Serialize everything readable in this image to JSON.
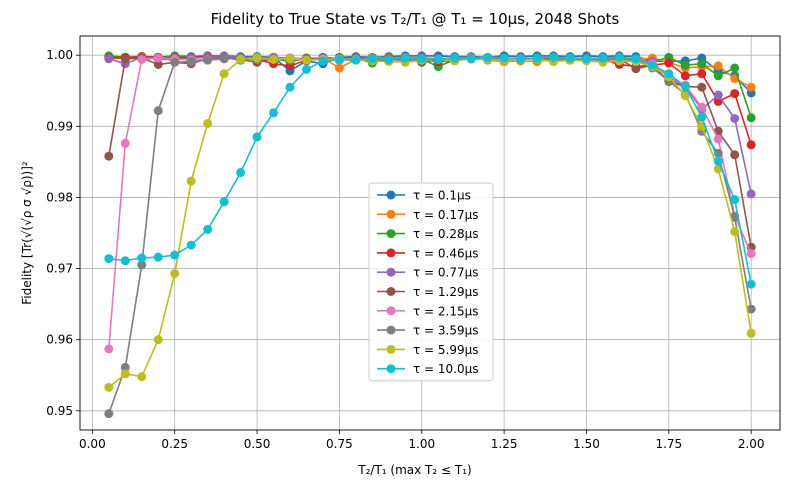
{
  "chart_data": {
    "type": "line",
    "title": "Fidelity to True State vs T₂/T₁ @ T₁ = 10μs, 2048 Shots",
    "xlabel": "T₂/T₁ (max T₂ ≤ T₁)",
    "ylabel": "Fidelity [Tr(√(√ρ σ √ρ))]²",
    "xlim": [
      -0.0375,
      2.0875
    ],
    "ylim": [
      0.9473,
      1.0027
    ],
    "xticks": [
      "0.00",
      "0.25",
      "0.50",
      "0.75",
      "1.00",
      "1.25",
      "1.50",
      "1.75",
      "2.00"
    ],
    "xtick_values": [
      0,
      0.25,
      0.5,
      0.75,
      1.0,
      1.25,
      1.5,
      1.75,
      2.0
    ],
    "yticks": [
      "0.95",
      "0.96",
      "0.97",
      "0.98",
      "0.99",
      "1.00"
    ],
    "ytick_values": [
      0.95,
      0.96,
      0.97,
      0.98,
      0.99,
      1.0
    ],
    "grid": true,
    "legend_position": "lower-center",
    "x": [
      0.05,
      0.1,
      0.15,
      0.2,
      0.25,
      0.3,
      0.35,
      0.4,
      0.45,
      0.5,
      0.55,
      0.6,
      0.65,
      0.7,
      0.75,
      0.8,
      0.85,
      0.9,
      0.95,
      1.0,
      1.05,
      1.1,
      1.15,
      1.2,
      1.25,
      1.3,
      1.35,
      1.4,
      1.45,
      1.5,
      1.55,
      1.6,
      1.65,
      1.7,
      1.75,
      1.8,
      1.85,
      1.9,
      1.95,
      2.0
    ],
    "series": [
      {
        "name": "τ = 0.1μs",
        "color": "#1f77b4",
        "values": [
          0.9998,
          0.9996,
          0.9998,
          0.9997,
          0.9999,
          0.9998,
          0.9999,
          0.9999,
          0.9998,
          0.9998,
          0.9997,
          0.9978,
          0.9992,
          0.9988,
          0.9997,
          0.9998,
          0.9997,
          0.9998,
          0.9999,
          0.9999,
          0.9999,
          0.9998,
          0.9998,
          0.9997,
          0.9999,
          0.9998,
          0.9999,
          0.9999,
          0.9998,
          0.9999,
          0.9998,
          0.9999,
          0.9998,
          0.9992,
          0.9991,
          0.9992,
          0.9996,
          0.9978,
          0.9971,
          0.9947
        ]
      },
      {
        "name": "τ = 0.17μs",
        "color": "#ff7f0e",
        "values": [
          0.9996,
          0.9995,
          0.9998,
          0.9997,
          0.9998,
          0.9997,
          0.9998,
          0.9998,
          0.9996,
          0.9997,
          0.9995,
          0.9992,
          0.9995,
          0.9996,
          0.9982,
          0.9994,
          0.9996,
          0.9996,
          0.9997,
          0.9996,
          0.9995,
          0.9996,
          0.9997,
          0.9993,
          0.9991,
          0.9992,
          0.9991,
          0.9994,
          0.9993,
          0.9995,
          0.9996,
          0.9992,
          0.9994,
          0.9996,
          0.999,
          0.9982,
          0.9984,
          0.9985,
          0.9967,
          0.9955
        ]
      },
      {
        "name": "τ = 0.28μs",
        "color": "#2ca02c",
        "values": [
          0.9999,
          0.9997,
          0.9998,
          0.9997,
          0.9998,
          0.9997,
          0.9998,
          0.9997,
          0.9993,
          0.9996,
          0.9995,
          0.9991,
          0.9995,
          0.9996,
          0.9995,
          0.9996,
          0.9989,
          0.9995,
          0.9996,
          0.9995,
          0.9984,
          0.9994,
          0.9996,
          0.9995,
          0.9996,
          0.9995,
          0.9996,
          0.9995,
          0.9994,
          0.9995,
          0.9996,
          0.9995,
          0.9993,
          0.9991,
          0.9997,
          0.9986,
          0.9988,
          0.9971,
          0.9982,
          0.9912
        ]
      },
      {
        "name": "τ = 0.46μs",
        "color": "#d62728",
        "values": [
          0.9996,
          0.9997,
          0.9998,
          0.9997,
          0.9996,
          0.9997,
          0.9998,
          0.9996,
          0.9997,
          0.9994,
          0.9988,
          0.9985,
          0.9993,
          0.9997,
          0.9995,
          0.9996,
          0.9993,
          0.9995,
          0.9992,
          0.9994,
          0.9991,
          0.9993,
          0.9995,
          0.9994,
          0.9993,
          0.9996,
          0.9995,
          0.9994,
          0.9993,
          0.9995,
          0.9994,
          0.9987,
          0.9984,
          0.9986,
          0.9989,
          0.9971,
          0.9974,
          0.9935,
          0.9946,
          0.9874
        ]
      },
      {
        "name": "τ = 0.77μs",
        "color": "#9467bd",
        "values": [
          0.9995,
          0.9988,
          0.9997,
          0.9995,
          0.9993,
          0.9996,
          0.9997,
          0.9998,
          0.9997,
          0.9994,
          0.9997,
          0.9996,
          0.9995,
          0.9996,
          0.9994,
          0.9996,
          0.9995,
          0.9993,
          0.9994,
          0.9996,
          0.9995,
          0.9995,
          0.9996,
          0.9994,
          0.9995,
          0.9996,
          0.9994,
          0.9993,
          0.9995,
          0.9996,
          0.9994,
          0.9995,
          0.9994,
          0.9991,
          0.9967,
          0.9956,
          0.9924,
          0.9944,
          0.9911,
          0.9805
        ]
      },
      {
        "name": "τ = 1.29μs",
        "color": "#8c564b",
        "values": [
          0.9858,
          0.9995,
          0.9996,
          0.9987,
          0.999,
          0.9988,
          0.9995,
          0.9996,
          0.9994,
          0.999,
          0.9995,
          0.9994,
          0.9996,
          0.9995,
          0.9993,
          0.9995,
          0.9994,
          0.9993,
          0.9995,
          0.999,
          0.9994,
          0.9993,
          0.9995,
          0.9994,
          0.9996,
          0.9995,
          0.9994,
          0.9993,
          0.9995,
          0.9996,
          0.9994,
          0.9995,
          0.9981,
          0.9986,
          0.9963,
          0.9956,
          0.9955,
          0.9893,
          0.986,
          0.973
        ]
      },
      {
        "name": "τ = 2.15μs",
        "color": "#e377c2",
        "values": [
          0.9587,
          0.9876,
          0.9994,
          0.9996,
          0.9995,
          0.9993,
          0.9994,
          0.9995,
          0.9996,
          0.9994,
          0.9995,
          0.9996,
          0.9994,
          0.9995,
          0.9993,
          0.9994,
          0.9995,
          0.9994,
          0.9993,
          0.9995,
          0.9994,
          0.9993,
          0.9995,
          0.9994,
          0.9993,
          0.9995,
          0.9994,
          0.9993,
          0.9995,
          0.9994,
          0.9993,
          0.9995,
          0.9994,
          0.9988,
          0.9969,
          0.9958,
          0.9927,
          0.9882,
          0.9774,
          0.9721
        ]
      },
      {
        "name": "τ = 3.59μs",
        "color": "#7f7f7f",
        "values": [
          0.9496,
          0.9561,
          0.9705,
          0.9922,
          0.999,
          0.9991,
          0.9993,
          0.9995,
          0.9996,
          0.9994,
          0.9995,
          0.9993,
          0.9994,
          0.9995,
          0.9994,
          0.9993,
          0.9995,
          0.9994,
          0.9993,
          0.9995,
          0.9994,
          0.9993,
          0.9995,
          0.9994,
          0.9993,
          0.9995,
          0.9994,
          0.9993,
          0.9995,
          0.9994,
          0.9993,
          0.9995,
          0.9994,
          0.9982,
          0.9964,
          0.9945,
          0.9893,
          0.9862,
          0.9772,
          0.9643
        ]
      },
      {
        "name": "τ = 5.99μs",
        "color": "#bcbd22",
        "values": [
          0.9533,
          0.9552,
          0.9548,
          0.96,
          0.9693,
          0.9823,
          0.9904,
          0.9974,
          0.9994,
          0.9996,
          0.9994,
          0.9995,
          0.9993,
          0.9994,
          0.9995,
          0.9994,
          0.9992,
          0.9991,
          0.999,
          0.9993,
          0.9994,
          0.9992,
          0.9995,
          0.9994,
          0.9993,
          0.9995,
          0.9994,
          0.9991,
          0.9993,
          0.9992,
          0.999,
          0.9992,
          0.9991,
          0.9984,
          0.997,
          0.9943,
          0.99,
          0.984,
          0.9752,
          0.9609
        ]
      },
      {
        "name": "τ = 10.0μs",
        "color": "#17becf",
        "values": [
          0.9714,
          0.9711,
          0.9715,
          0.9716,
          0.9719,
          0.9733,
          0.9755,
          0.9794,
          0.9835,
          0.9885,
          0.9919,
          0.9955,
          0.998,
          0.9992,
          0.9994,
          0.9993,
          0.9995,
          0.9994,
          0.9996,
          0.9995,
          0.9994,
          0.9996,
          0.9995,
          0.9997,
          0.9996,
          0.9995,
          0.9996,
          0.9997,
          0.9996,
          0.9995,
          0.9996,
          0.9997,
          0.9995,
          0.9986,
          0.9974,
          0.9956,
          0.9913,
          0.9851,
          0.9797,
          0.9678
        ]
      }
    ]
  }
}
